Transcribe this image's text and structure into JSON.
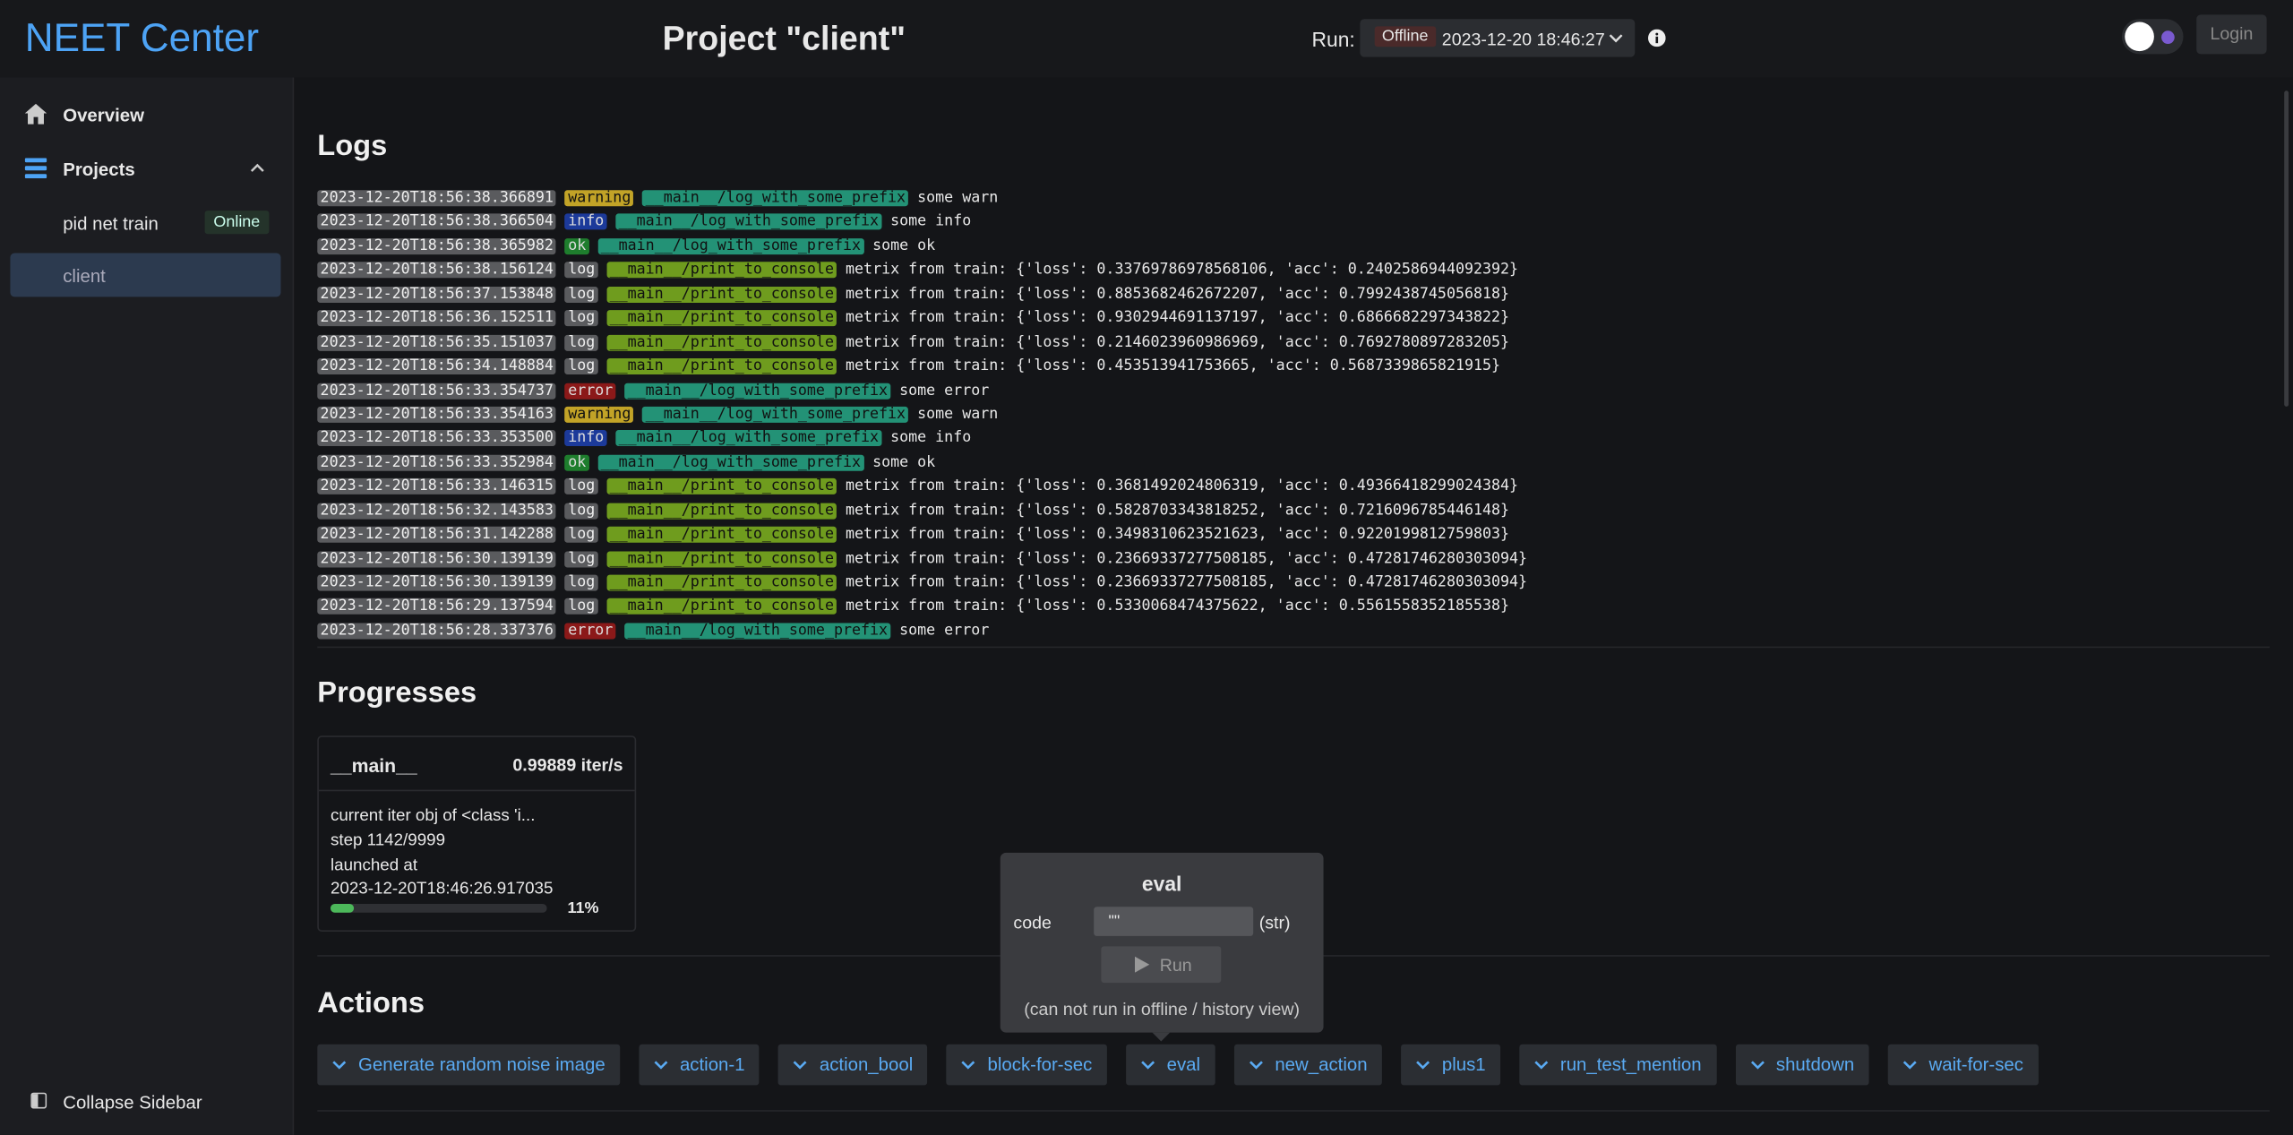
{
  "header": {
    "app_title": "NEET Center",
    "project_title": "Project \"client\"",
    "run_label": "Run:",
    "run_status": "Offline",
    "run_date": "2023-12-20 18:46:27",
    "login": "Login"
  },
  "sidebar": {
    "items": [
      "Overview",
      "Projects"
    ],
    "projects": [
      {
        "name": "pid net train",
        "status": "Online"
      },
      {
        "name": "client"
      }
    ],
    "collapse": "Collapse Sidebar"
  },
  "logs": {
    "title": "Logs",
    "rows": [
      [
        "2023-12-20T18:56:38.366891",
        "warning",
        "__main__/log_with_some_prefix",
        "some warn"
      ],
      [
        "2023-12-20T18:56:38.366504",
        "info",
        "__main__/log_with_some_prefix",
        "some info"
      ],
      [
        "2023-12-20T18:56:38.365982",
        "ok",
        "__main__/log_with_some_prefix",
        "some ok"
      ],
      [
        "2023-12-20T18:56:38.156124",
        "log",
        "__main__/print_to_console",
        "metrix from train: {'loss': 0.33769786978568106, 'acc': 0.2402586944092392}"
      ],
      [
        "2023-12-20T18:56:37.153848",
        "log",
        "__main__/print_to_console",
        "metrix from train: {'loss': 0.8853682462672207, 'acc': 0.7992438745056818}"
      ],
      [
        "2023-12-20T18:56:36.152511",
        "log",
        "__main__/print_to_console",
        "metrix from train: {'loss': 0.9302944691137197, 'acc': 0.6866682297343822}"
      ],
      [
        "2023-12-20T18:56:35.151037",
        "log",
        "__main__/print_to_console",
        "metrix from train: {'loss': 0.2146023960986969, 'acc': 0.7692780897283205}"
      ],
      [
        "2023-12-20T18:56:34.148884",
        "log",
        "__main__/print_to_console",
        "metrix from train: {'loss': 0.453513941753665, 'acc': 0.5687339865821915}"
      ],
      [
        "2023-12-20T18:56:33.354737",
        "error",
        "__main__/log_with_some_prefix",
        "some error"
      ],
      [
        "2023-12-20T18:56:33.354163",
        "warning",
        "__main__/log_with_some_prefix",
        "some warn"
      ],
      [
        "2023-12-20T18:56:33.353500",
        "info",
        "__main__/log_with_some_prefix",
        "some info"
      ],
      [
        "2023-12-20T18:56:33.352984",
        "ok",
        "__main__/log_with_some_prefix",
        "some ok"
      ],
      [
        "2023-12-20T18:56:33.146315",
        "log",
        "__main__/print_to_console",
        "metrix from train: {'loss': 0.3681492024806319, 'acc': 0.49366418299024384}"
      ],
      [
        "2023-12-20T18:56:32.143583",
        "log",
        "__main__/print_to_console",
        "metrix from train: {'loss': 0.5828703343818252, 'acc': 0.7216096785446148}"
      ],
      [
        "2023-12-20T18:56:31.142288",
        "log",
        "__main__/print_to_console",
        "metrix from train: {'loss': 0.3498310623521623, 'acc': 0.9220199812759803}"
      ],
      [
        "2023-12-20T18:56:30.139139",
        "log",
        "__main__/print_to_console",
        "metrix from train: {'loss': 0.23669337277508185, 'acc': 0.47281746280303094}"
      ],
      [
        "2023-12-20T18:56:30.139139",
        "log",
        "__main__/print_to_console",
        "metrix from train: {'loss': 0.23669337277508185, 'acc': 0.47281746280303094}"
      ],
      [
        "2023-12-20T18:56:29.137594",
        "log",
        "__main__/print_to_console",
        "metrix from train: {'loss': 0.5330068474375622, 'acc': 0.5561558352185538}"
      ],
      [
        "2023-12-20T18:56:28.337376",
        "error",
        "__main__/log_with_some_prefix",
        "some error"
      ]
    ]
  },
  "progresses": {
    "title": "Progresses",
    "card": {
      "name": "__main__",
      "rate": "0.99889 iter/s",
      "lines": [
        "current iter obj of <class 'i...",
        "step 1142/9999",
        "launched at",
        "2023-12-20T18:46:26.917035"
      ],
      "percent": {
        "value": 11,
        "label": "11%"
      }
    }
  },
  "popup": {
    "title": "eval",
    "field": "code",
    "input": "\"\"",
    "type": "(str)",
    "button": "Run",
    "note": "(can not run in offline / history view)"
  },
  "actions": {
    "title": "Actions",
    "items": [
      "Generate random noise image",
      "action-1",
      "action_bool",
      "block-for-sec",
      "eval",
      "new_action",
      "plus1",
      "run_test_mention",
      "shutdown",
      "wait-for-sec"
    ]
  }
}
